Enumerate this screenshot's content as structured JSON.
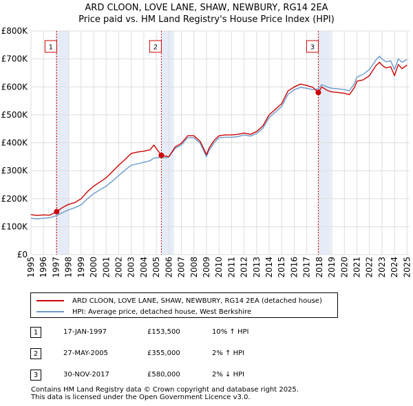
{
  "chart_data": {
    "type": "line",
    "title": "ARD CLOON, LOVE LANE, SHAW, NEWBURY, RG14 2EA",
    "subtitle": "Price paid vs. HM Land Registry's House Price Index (HPI)",
    "xlabel": "",
    "ylabel": "",
    "xlim": [
      1995,
      2025.2
    ],
    "ylim": [
      0,
      800000
    ],
    "y_ticks": [
      {
        "value": 0,
        "label": "£0"
      },
      {
        "value": 100000,
        "label": "£100K"
      },
      {
        "value": 200000,
        "label": "£200K"
      },
      {
        "value": 300000,
        "label": "£300K"
      },
      {
        "value": 400000,
        "label": "£400K"
      },
      {
        "value": 500000,
        "label": "£500K"
      },
      {
        "value": 600000,
        "label": "£600K"
      },
      {
        "value": 700000,
        "label": "£700K"
      },
      {
        "value": 800000,
        "label": "£800K"
      }
    ],
    "x_ticks": [
      "1995",
      "1996",
      "1997",
      "1998",
      "1999",
      "2000",
      "2001",
      "2002",
      "2003",
      "2004",
      "2005",
      "2006",
      "2007",
      "2008",
      "2009",
      "2010",
      "2011",
      "2012",
      "2013",
      "2014",
      "2015",
      "2016",
      "2017",
      "2018",
      "2019",
      "2020",
      "2021",
      "2022",
      "2023",
      "2024",
      "2025"
    ],
    "grid": true,
    "series": [
      {
        "name": "ARD CLOON, LOVE LANE, SHAW, NEWBURY, RG14 2EA (detached house)",
        "color": "#cc0000",
        "x": [
          1995,
          1995.5,
          1996,
          1996.5,
          1997.05,
          1997.5,
          1998,
          1998.5,
          1999,
          1999.5,
          2000,
          2000.5,
          2001,
          2001.5,
          2002,
          2002.5,
          2003,
          2003.5,
          2004,
          2004.5,
          2004.8,
          2005.4,
          2005.8,
          2006,
          2006.5,
          2007,
          2007.5,
          2008,
          2008.5,
          2009,
          2009.2,
          2009.6,
          2010,
          2010.5,
          2011,
          2011.5,
          2012,
          2012.5,
          2013,
          2013.5,
          2014,
          2014.5,
          2015,
          2015.5,
          2016,
          2016.5,
          2017,
          2017.5,
          2017.92,
          2018.2,
          2018.6,
          2019,
          2019.5,
          2020,
          2020.4,
          2020.8,
          2021,
          2021.5,
          2022,
          2022.5,
          2022.8,
          2023,
          2023.3,
          2023.7,
          2024,
          2024.3,
          2024.6,
          2025
        ],
        "values": [
          143000,
          140000,
          142000,
          141000,
          153500,
          168000,
          180000,
          186000,
          200000,
          225000,
          245000,
          260000,
          275000,
          297000,
          320000,
          340000,
          362000,
          367000,
          370000,
          375000,
          392000,
          355000,
          352000,
          350000,
          385000,
          398000,
          425000,
          425000,
          405000,
          358000,
          380000,
          408000,
          425000,
          428000,
          428000,
          430000,
          435000,
          430000,
          440000,
          460000,
          500000,
          520000,
          540000,
          585000,
          600000,
          610000,
          605000,
          598000,
          580000,
          600000,
          588000,
          582000,
          580000,
          577000,
          572000,
          598000,
          620000,
          625000,
          640000,
          675000,
          688000,
          678000,
          668000,
          672000,
          640000,
          680000,
          665000,
          678000
        ]
      },
      {
        "name": "HPI: Average price, detached house, West Berkshire",
        "color": "#6699cc",
        "x": [
          1995,
          1995.5,
          1996,
          1996.5,
          1997.05,
          1997.5,
          1998,
          1998.5,
          1999,
          1999.5,
          2000,
          2000.5,
          2001,
          2001.5,
          2002,
          2002.5,
          2003,
          2003.5,
          2004,
          2004.5,
          2004.8,
          2005.4,
          2005.8,
          2006,
          2006.5,
          2007,
          2007.5,
          2008,
          2008.5,
          2009,
          2009.2,
          2009.6,
          2010,
          2010.5,
          2011,
          2011.5,
          2012,
          2012.5,
          2013,
          2013.5,
          2014,
          2014.5,
          2015,
          2015.5,
          2016,
          2016.5,
          2017,
          2017.5,
          2017.92,
          2018.2,
          2018.6,
          2019,
          2019.5,
          2020,
          2020.4,
          2020.8,
          2021,
          2021.5,
          2022,
          2022.5,
          2022.8,
          2023,
          2023.3,
          2023.7,
          2024,
          2024.3,
          2024.6,
          2025
        ],
        "values": [
          130000,
          128000,
          130000,
          132000,
          139500,
          150000,
          160000,
          168000,
          178000,
          200000,
          218000,
          232000,
          245000,
          263000,
          283000,
          302000,
          320000,
          325000,
          330000,
          336000,
          345000,
          348000,
          346000,
          350000,
          380000,
          392000,
          418000,
          418000,
          398000,
          350000,
          372000,
          400000,
          418000,
          420000,
          420000,
          422000,
          428000,
          424000,
          433000,
          452000,
          490000,
          510000,
          530000,
          573000,
          590000,
          598000,
          595000,
          590000,
          593000,
          608000,
          600000,
          595000,
          593000,
          590000,
          586000,
          612000,
          635000,
          645000,
          662000,
          695000,
          710000,
          700000,
          690000,
          693000,
          662000,
          700000,
          688000,
          698000
        ]
      }
    ],
    "annotations": [
      {
        "label": "1",
        "x": 1997.05,
        "price": 153500
      },
      {
        "label": "2",
        "x": 2005.4,
        "price": 355000
      },
      {
        "label": "3",
        "x": 2017.92,
        "price": 580000
      }
    ]
  },
  "legend": {
    "items": [
      {
        "label": "ARD CLOON, LOVE LANE, SHAW, NEWBURY, RG14 2EA (detached house)",
        "color": "#cc0000"
      },
      {
        "label": "HPI: Average price, detached house, West Berkshire",
        "color": "#6699cc"
      }
    ]
  },
  "sales": [
    {
      "num": "1",
      "date": "17-JAN-1997",
      "price": "£153,500",
      "hpi": "10% ↑ HPI"
    },
    {
      "num": "2",
      "date": "27-MAY-2005",
      "price": "£355,000",
      "hpi": "2% ↑ HPI"
    },
    {
      "num": "3",
      "date": "30-NOV-2017",
      "price": "£580,000",
      "hpi": "2% ↓ HPI"
    }
  ],
  "footer": {
    "line1": "Contains HM Land Registry data © Crown copyright and database right 2025.",
    "line2": "This data is licensed under the Open Government Licence v3.0."
  }
}
